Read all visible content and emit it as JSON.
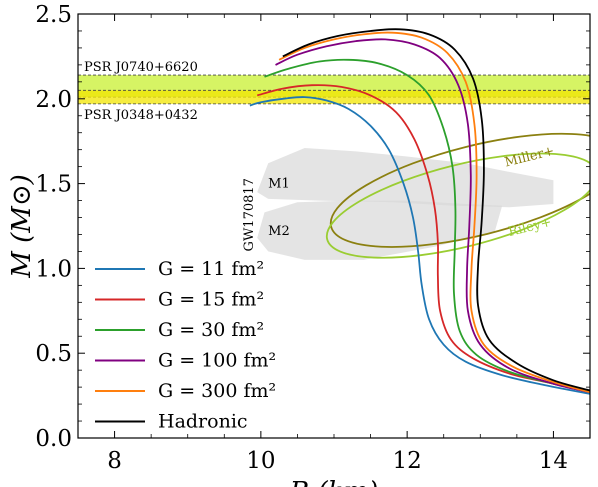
{
  "chart_data": {
    "type": "line",
    "xlabel": "R (km)",
    "ylabel": "M (M⊙)",
    "xlim": [
      7.5,
      14.5
    ],
    "ylim": [
      0.0,
      2.5
    ],
    "xticks": [
      "8",
      "10",
      "12",
      "14"
    ],
    "yticks": [
      "0.0",
      "0.5",
      "1.0",
      "1.5",
      "2.0",
      "2.5"
    ],
    "legend_position": "lower-left",
    "series": [
      {
        "name": "G = 11 fm²",
        "color": "#1f77b4",
        "points": [
          [
            9.85,
            1.96
          ],
          [
            10.0,
            1.98
          ],
          [
            10.3,
            2.0
          ],
          [
            10.6,
            2.01
          ],
          [
            10.9,
            1.99
          ],
          [
            11.2,
            1.94
          ],
          [
            11.5,
            1.84
          ],
          [
            11.75,
            1.7
          ],
          [
            11.95,
            1.5
          ],
          [
            12.08,
            1.3
          ],
          [
            12.15,
            1.1
          ],
          [
            12.2,
            0.9
          ],
          [
            12.3,
            0.7
          ],
          [
            12.5,
            0.55
          ],
          [
            12.8,
            0.45
          ],
          [
            13.3,
            0.37
          ],
          [
            13.9,
            0.31
          ],
          [
            14.5,
            0.26
          ]
        ]
      },
      {
        "name": "G = 15 fm²",
        "color": "#d62728",
        "points": [
          [
            9.95,
            2.02
          ],
          [
            10.3,
            2.06
          ],
          [
            10.7,
            2.08
          ],
          [
            11.1,
            2.07
          ],
          [
            11.5,
            2.02
          ],
          [
            11.85,
            1.92
          ],
          [
            12.1,
            1.76
          ],
          [
            12.28,
            1.55
          ],
          [
            12.38,
            1.35
          ],
          [
            12.42,
            1.15
          ],
          [
            12.42,
            0.95
          ],
          [
            12.45,
            0.75
          ],
          [
            12.6,
            0.58
          ],
          [
            12.9,
            0.47
          ],
          [
            13.4,
            0.38
          ],
          [
            14.0,
            0.32
          ],
          [
            14.5,
            0.27
          ]
        ]
      },
      {
        "name": "G = 30 fm²",
        "color": "#2ca02c",
        "points": [
          [
            10.05,
            2.13
          ],
          [
            10.4,
            2.18
          ],
          [
            10.8,
            2.22
          ],
          [
            11.2,
            2.23
          ],
          [
            11.6,
            2.21
          ],
          [
            12.0,
            2.14
          ],
          [
            12.3,
            2.02
          ],
          [
            12.5,
            1.82
          ],
          [
            12.62,
            1.6
          ],
          [
            12.66,
            1.35
          ],
          [
            12.65,
            1.1
          ],
          [
            12.64,
            0.85
          ],
          [
            12.72,
            0.63
          ],
          [
            12.95,
            0.49
          ],
          [
            13.4,
            0.39
          ],
          [
            14.0,
            0.32
          ],
          [
            14.5,
            0.27
          ]
        ]
      },
      {
        "name": "G = 100 fm²",
        "color": "#800080",
        "points": [
          [
            10.2,
            2.2
          ],
          [
            10.5,
            2.26
          ],
          [
            10.9,
            2.31
          ],
          [
            11.3,
            2.34
          ],
          [
            11.7,
            2.35
          ],
          [
            12.1,
            2.32
          ],
          [
            12.45,
            2.24
          ],
          [
            12.7,
            2.08
          ],
          [
            12.83,
            1.85
          ],
          [
            12.87,
            1.55
          ],
          [
            12.85,
            1.25
          ],
          [
            12.82,
            1.0
          ],
          [
            12.83,
            0.75
          ],
          [
            13.0,
            0.55
          ],
          [
            13.4,
            0.41
          ],
          [
            14.0,
            0.32
          ],
          [
            14.5,
            0.27
          ]
        ]
      },
      {
        "name": "G = 300 fm²",
        "color": "#ff7f0e",
        "points": [
          [
            10.25,
            2.23
          ],
          [
            10.6,
            2.3
          ],
          [
            11.0,
            2.35
          ],
          [
            11.4,
            2.38
          ],
          [
            11.8,
            2.39
          ],
          [
            12.2,
            2.36
          ],
          [
            12.55,
            2.27
          ],
          [
            12.8,
            2.1
          ],
          [
            12.92,
            1.85
          ],
          [
            12.95,
            1.55
          ],
          [
            12.92,
            1.25
          ],
          [
            12.88,
            1.0
          ],
          [
            12.88,
            0.75
          ],
          [
            13.05,
            0.55
          ],
          [
            13.45,
            0.42
          ],
          [
            14.0,
            0.33
          ],
          [
            14.5,
            0.27
          ]
        ]
      },
      {
        "name": "Hadronic",
        "color": "#000000",
        "points": [
          [
            10.3,
            2.25
          ],
          [
            10.65,
            2.32
          ],
          [
            11.05,
            2.37
          ],
          [
            11.5,
            2.4
          ],
          [
            11.9,
            2.41
          ],
          [
            12.3,
            2.38
          ],
          [
            12.65,
            2.29
          ],
          [
            12.9,
            2.12
          ],
          [
            13.02,
            1.88
          ],
          [
            13.05,
            1.58
          ],
          [
            13.02,
            1.28
          ],
          [
            12.97,
            1.02
          ],
          [
            12.97,
            0.78
          ],
          [
            13.12,
            0.58
          ],
          [
            13.5,
            0.44
          ],
          [
            14.0,
            0.34
          ],
          [
            14.5,
            0.28
          ]
        ]
      }
    ],
    "bands": [
      {
        "label": "PSR J0740+6620",
        "ymin": 2.01,
        "ymax": 2.14,
        "color": "#c8f030"
      },
      {
        "label": "PSR J0348+0432",
        "ymin": 1.97,
        "ymax": 2.05,
        "color": "#f2e600"
      }
    ],
    "gw_label": "GW170817",
    "gw_regions": [
      {
        "label": "M1",
        "points": [
          [
            9.95,
            1.45
          ],
          [
            10.1,
            1.62
          ],
          [
            10.6,
            1.71
          ],
          [
            11.3,
            1.69
          ],
          [
            12.0,
            1.66
          ],
          [
            12.8,
            1.62
          ],
          [
            13.5,
            1.56
          ],
          [
            14.0,
            1.52
          ],
          [
            14.0,
            1.38
          ],
          [
            13.4,
            1.36
          ],
          [
            12.6,
            1.37
          ],
          [
            11.8,
            1.39
          ],
          [
            10.8,
            1.4
          ],
          [
            10.1,
            1.41
          ]
        ]
      },
      {
        "label": "M2",
        "points": [
          [
            9.95,
            1.18
          ],
          [
            10.05,
            1.33
          ],
          [
            10.5,
            1.39
          ],
          [
            11.2,
            1.4
          ],
          [
            12.0,
            1.4
          ],
          [
            12.8,
            1.38
          ],
          [
            13.3,
            1.37
          ],
          [
            13.2,
            1.22
          ],
          [
            12.4,
            1.13
          ],
          [
            11.4,
            1.05
          ],
          [
            10.6,
            1.05
          ],
          [
            10.1,
            1.1
          ]
        ]
      }
    ],
    "ellipses": [
      {
        "label": "Miller+",
        "color": "#8b8010",
        "cx": 12.95,
        "cy": 1.46,
        "rx": 2.05,
        "ry": 0.12,
        "angle_deg": -14
      },
      {
        "label": "Riley+",
        "color": "#9acd32",
        "cx": 12.75,
        "cy": 1.37,
        "rx": 1.9,
        "ry": 0.11,
        "angle_deg": -14
      }
    ]
  }
}
